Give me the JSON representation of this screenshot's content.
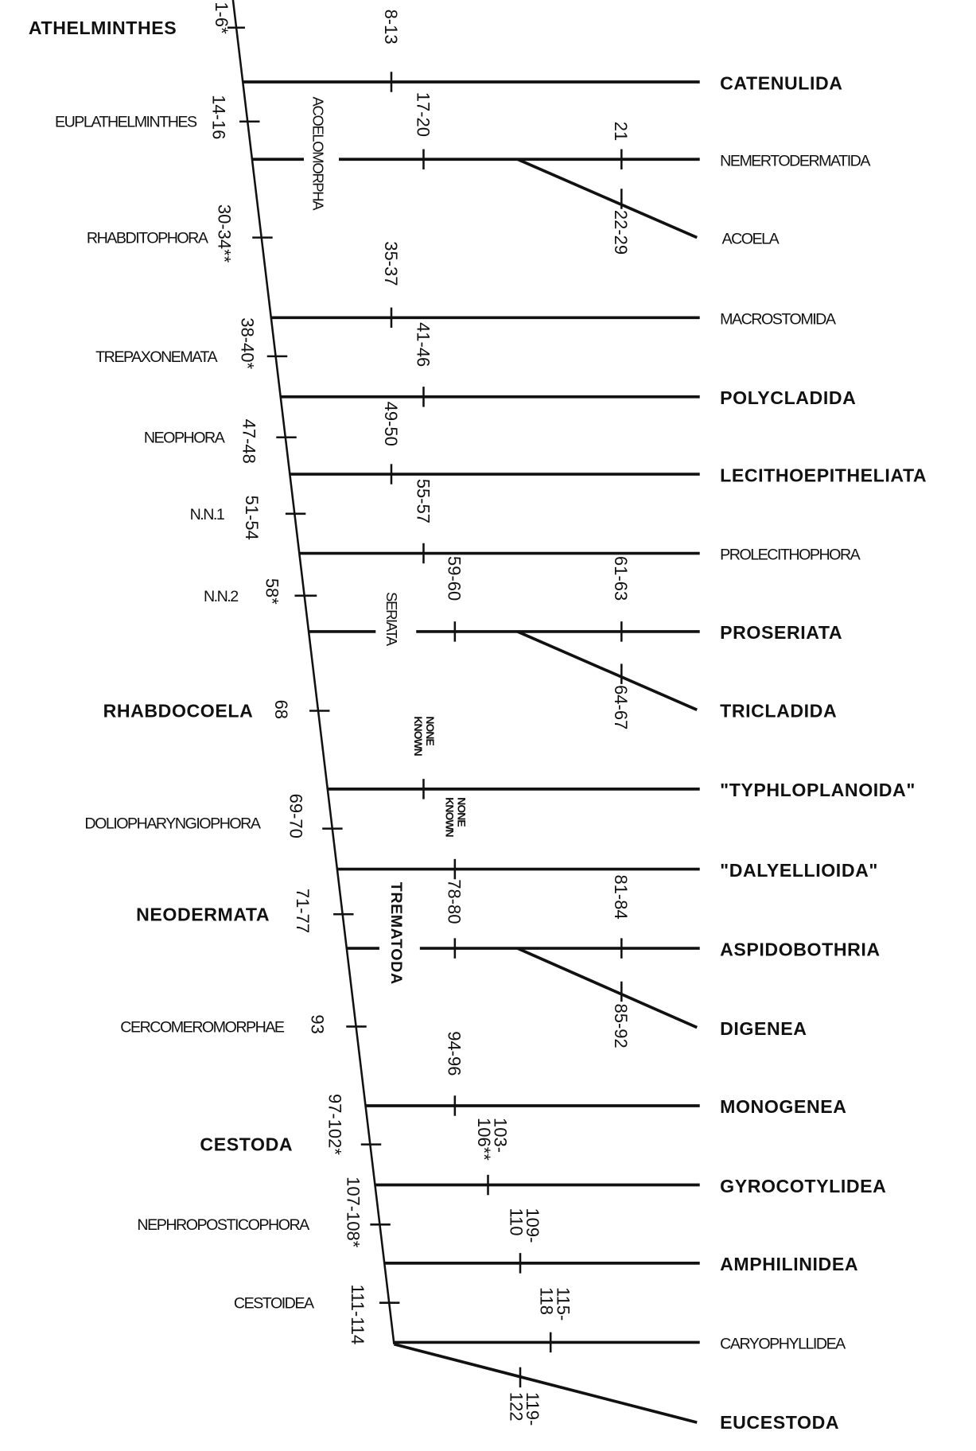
{
  "root": {
    "label": "ATHELMINTHES",
    "chars": "1-6*"
  },
  "nodes": [
    {
      "label": "EUPLATHELMINTHES",
      "chars": "14-16"
    },
    {
      "label": "RHABDITOPHORA",
      "chars": "30-34**"
    },
    {
      "label": "TREPAXONEMATA",
      "chars": "38-40*"
    },
    {
      "label": "NEOPHORA",
      "chars": "47-48"
    },
    {
      "label": "N.N.1",
      "chars": "51-54"
    },
    {
      "label": "N.N.2",
      "chars": "58*"
    },
    {
      "label": "RHABDOCOELA",
      "chars": "68"
    },
    {
      "label": "DOLIOPHARYNGIOPHORA",
      "chars": "69-70"
    },
    {
      "label": "NEODERMATA",
      "chars": "71-77"
    },
    {
      "label": "CERCOMEROMORPHAE",
      "chars": "93"
    },
    {
      "label": "CESTODA",
      "chars": "97-102*"
    },
    {
      "label": "NEPHROPOSTICOPHORA",
      "chars": "107-108*"
    },
    {
      "label": "CESTOIDEA",
      "chars": "111-114"
    }
  ],
  "groups": {
    "acoelomorpha": "ACOELOMORPHA",
    "seriata": "SERIATA",
    "trematoda": "TREMATODA"
  },
  "taxa": [
    {
      "label": "CATENULIDA",
      "chars": [
        "8-13"
      ]
    },
    {
      "label": "NEMERTODERMATIDA",
      "chars": [
        "17-20",
        "21"
      ]
    },
    {
      "label": "ACOELA",
      "chars": [
        "22-29"
      ]
    },
    {
      "label": "MACROSTOMIDA",
      "chars": [
        "35-37"
      ]
    },
    {
      "label": "POLYCLADIDA",
      "chars": [
        "41-46"
      ]
    },
    {
      "label": "LECITHOEPITHELIATA",
      "chars": [
        "49-50"
      ]
    },
    {
      "label": "PROLECITHOPHORA",
      "chars": [
        "55-57"
      ]
    },
    {
      "label": "PROSERIATA",
      "chars": [
        "59-60",
        "61-63"
      ]
    },
    {
      "label": "TRICLADIDA",
      "chars": [
        "64-67"
      ]
    },
    {
      "label": "\"TYPHLOPLANOIDA\"",
      "chars": [
        "NONE",
        "KNOWN"
      ]
    },
    {
      "label": "\"DALYELLIOIDA\"",
      "chars": [
        "NONE",
        "KNOWN"
      ]
    },
    {
      "label": "ASPIDOBOTHRIA",
      "chars": [
        "78-80",
        "81-84"
      ]
    },
    {
      "label": "DIGENEA",
      "chars": [
        "85-92"
      ]
    },
    {
      "label": "MONOGENEA",
      "chars": [
        "94-96"
      ]
    },
    {
      "label": "GYROCOTYLIDEA",
      "chars": [
        "103-",
        "106**"
      ]
    },
    {
      "label": "AMPHILINIDEA",
      "chars": [
        "109-",
        "110"
      ]
    },
    {
      "label": "CARYOPHYLLIDEA",
      "chars": [
        "115-",
        "118"
      ]
    },
    {
      "label": "EUCESTODA",
      "chars": [
        "119-",
        "122"
      ]
    }
  ]
}
